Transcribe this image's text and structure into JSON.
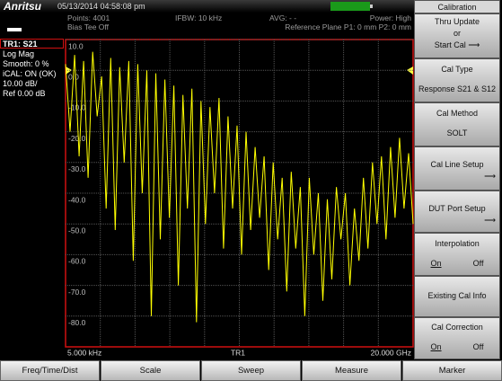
{
  "status_bar": {
    "brand": "Anritsu",
    "datetime": "05/13/2014 04:58:08 pm"
  },
  "info": {
    "points": "Points: 4001",
    "bias_tee": "Bias Tee Off",
    "ifbw": "IFBW: 10 kHz",
    "avg": "AVG: - -",
    "power": "Power: High",
    "reference_plane": "Reference Plane P1: 0 mm P2: 0 mm"
  },
  "trace_info": {
    "trace": "TR1: S21",
    "format": "Log Mag",
    "smooth": "Smooth: 0 %",
    "ical": "iCAL: ON (OK)",
    "scale": "10.00 dB/",
    "ref": "Ref 0.00 dB"
  },
  "chart_data": {
    "type": "line",
    "start_label": "5.000 kHz",
    "stop_label": "20.000 GHz",
    "trace_label": "TR1",
    "ylim": [
      -90,
      10
    ],
    "yticks": [
      {
        "value": 10,
        "label": "10.0"
      },
      {
        "value": 0,
        "label": "0.0"
      },
      {
        "value": -10,
        "label": "-10.0"
      },
      {
        "value": -20,
        "label": "-20.0"
      },
      {
        "value": -30,
        "label": "-30.0"
      },
      {
        "value": -40,
        "label": "-40.0"
      },
      {
        "value": -50,
        "label": "-50.0"
      },
      {
        "value": -60,
        "label": "-60.0"
      },
      {
        "value": -70,
        "label": "-70.0"
      },
      {
        "value": -80,
        "label": "-80.0"
      }
    ],
    "grid": true,
    "series": [
      {
        "name": "TR1",
        "color": "#ffff00",
        "values": [
          2,
          -20,
          5,
          -28,
          3,
          -35,
          6,
          -15,
          -2,
          -45,
          4,
          -52,
          1,
          -30,
          3,
          -62,
          2,
          -40,
          0,
          -80,
          -1,
          -55,
          -3,
          -48,
          -5,
          -70,
          -8,
          -45,
          -6,
          -82,
          -10,
          -50,
          -12,
          -40,
          -9,
          -58,
          -15,
          -45,
          -18,
          -60,
          -20,
          -52,
          -25,
          -48,
          -28,
          -65,
          -30,
          -55,
          -35,
          -72,
          -33,
          -58,
          -38,
          -80,
          -35,
          -60,
          -40,
          -75,
          -42,
          -68,
          -38,
          -55,
          -40,
          -70,
          -45,
          -62,
          -35,
          -58,
          -30,
          -50,
          -28,
          -55,
          -25,
          -48,
          -22,
          -45,
          -27,
          -50
        ]
      }
    ]
  },
  "side_menu": {
    "title": "Calibration",
    "buttons": [
      {
        "lines": [
          "Thru Update",
          "or",
          "Start Cal"
        ]
      },
      {
        "lines": [
          "Cal Type",
          "Response S21 & S12"
        ]
      },
      {
        "lines": [
          "Cal Method",
          "SOLT"
        ]
      },
      {
        "lines": [
          "Cal Line Setup"
        ]
      },
      {
        "lines": [
          "DUT Port Setup"
        ]
      },
      {
        "lines": [
          "Interpolation"
        ],
        "on": "On",
        "off": "Off"
      },
      {
        "lines": [
          "Existing Cal Info"
        ]
      },
      {
        "lines": [
          "Cal Correction"
        ],
        "on": "On",
        "off": "Off"
      }
    ]
  },
  "tabs": [
    "Freq/Time/Dist",
    "Scale",
    "Sweep",
    "Measure",
    "Marker"
  ]
}
